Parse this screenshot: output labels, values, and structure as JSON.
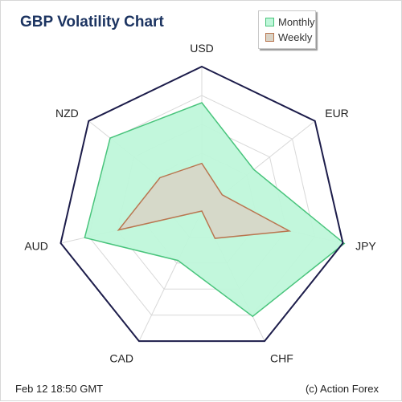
{
  "header": {
    "title": "GBP Volatility Chart"
  },
  "footer": {
    "date": "Feb 12  18:50 GMT",
    "credit": "(c) Action Forex"
  },
  "colors": {
    "frame": "#1c1c4a",
    "grid": "#d8d8d8",
    "monthly_fill": "#bff7da",
    "monthly_stroke": "#49c47c",
    "weekly_fill": "#d9d3c6",
    "weekly_stroke": "#b97650"
  },
  "chart_data": {
    "type": "radar",
    "title": "GBP Volatility Chart",
    "categories": [
      "USD",
      "EUR",
      "JPY",
      "CHF",
      "CAD",
      "AUD",
      "NZD"
    ],
    "max": 10,
    "grid_levels": 5,
    "series": [
      {
        "name": "Monthly",
        "values": [
          7.5,
          4.6,
          10.1,
          8.1,
          3.8,
          8.3,
          8.1
        ]
      },
      {
        "name": "Weekly",
        "values": [
          3.3,
          1.8,
          6.2,
          2.1,
          0.0,
          5.9,
          3.7
        ]
      }
    ],
    "legend": "top-right"
  }
}
